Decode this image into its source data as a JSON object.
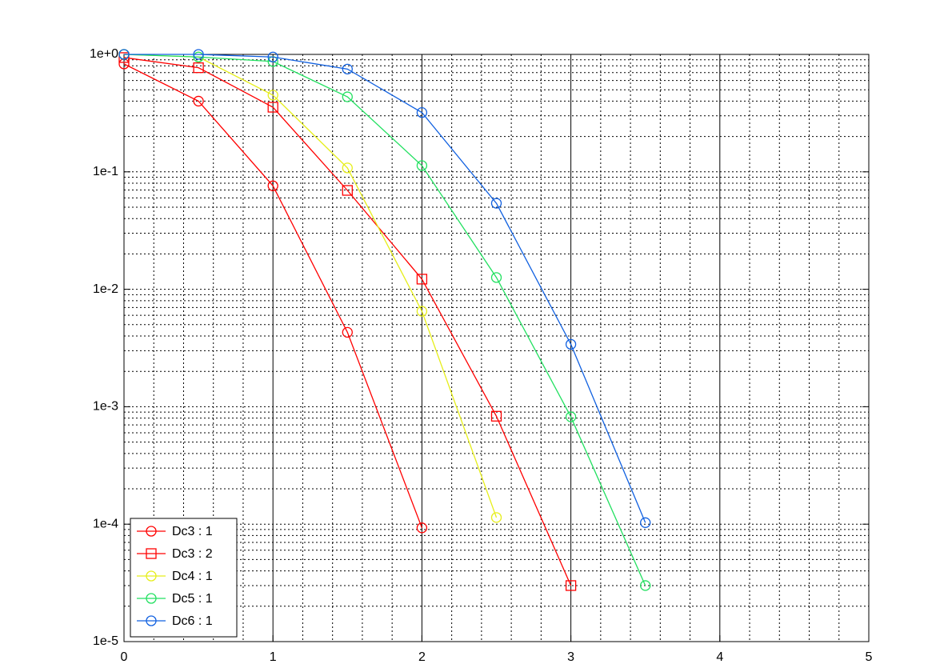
{
  "chart_data": {
    "type": "line",
    "log_y": true,
    "grid": true,
    "legend": "lower left",
    "xlim": [
      0,
      5
    ],
    "xticks": [
      0,
      1,
      2,
      3,
      4,
      5
    ],
    "ylim": [
      1e-05,
      1
    ],
    "yticks": [
      {
        "value": 1e-05,
        "label": "1e-5"
      },
      {
        "value": 0.0001,
        "label": "1e-4"
      },
      {
        "value": 0.001,
        "label": "1e-3"
      },
      {
        "value": 0.01,
        "label": "1e-2"
      },
      {
        "value": 0.1,
        "label": "1e-1"
      },
      {
        "value": 1,
        "label": "1e+0"
      }
    ],
    "series": [
      {
        "name": "Dc3 : 1",
        "color": "#ff0000",
        "marker": "circle",
        "x": [
          0,
          0.5,
          1,
          1.5,
          2
        ],
        "values": [
          0.83,
          0.4,
          0.076,
          0.0043,
          9.3e-05
        ]
      },
      {
        "name": "Dc3 : 2",
        "color": "#ff0000",
        "marker": "square",
        "x": [
          0,
          0.5,
          1,
          1.5,
          2,
          2.5,
          3
        ],
        "values": [
          0.94,
          0.77,
          0.355,
          0.0695,
          0.0122,
          0.00083,
          3e-05
        ]
      },
      {
        "name": "Dc4 : 1",
        "color": "#e6ee1a",
        "marker": "circle",
        "x": [
          0,
          0.5,
          1,
          1.5,
          2,
          2.5
        ],
        "values": [
          1.0,
          0.95,
          0.45,
          0.108,
          0.0065,
          0.000114
        ]
      },
      {
        "name": "Dc5 : 1",
        "color": "#22e060",
        "marker": "circle",
        "x": [
          0,
          0.5,
          1,
          1.5,
          2,
          2.5,
          3,
          3.5
        ],
        "values": [
          1.0,
          0.95,
          0.87,
          0.435,
          0.113,
          0.0126,
          0.00082,
          3e-05
        ]
      },
      {
        "name": "Dc6 : 1",
        "color": "#1060e0",
        "marker": "circle",
        "x": [
          0,
          0.5,
          1,
          1.5,
          2,
          2.5,
          3,
          3.5
        ],
        "values": [
          1.0,
          1.0,
          0.95,
          0.75,
          0.32,
          0.054,
          0.0034,
          0.000103
        ]
      }
    ]
  }
}
